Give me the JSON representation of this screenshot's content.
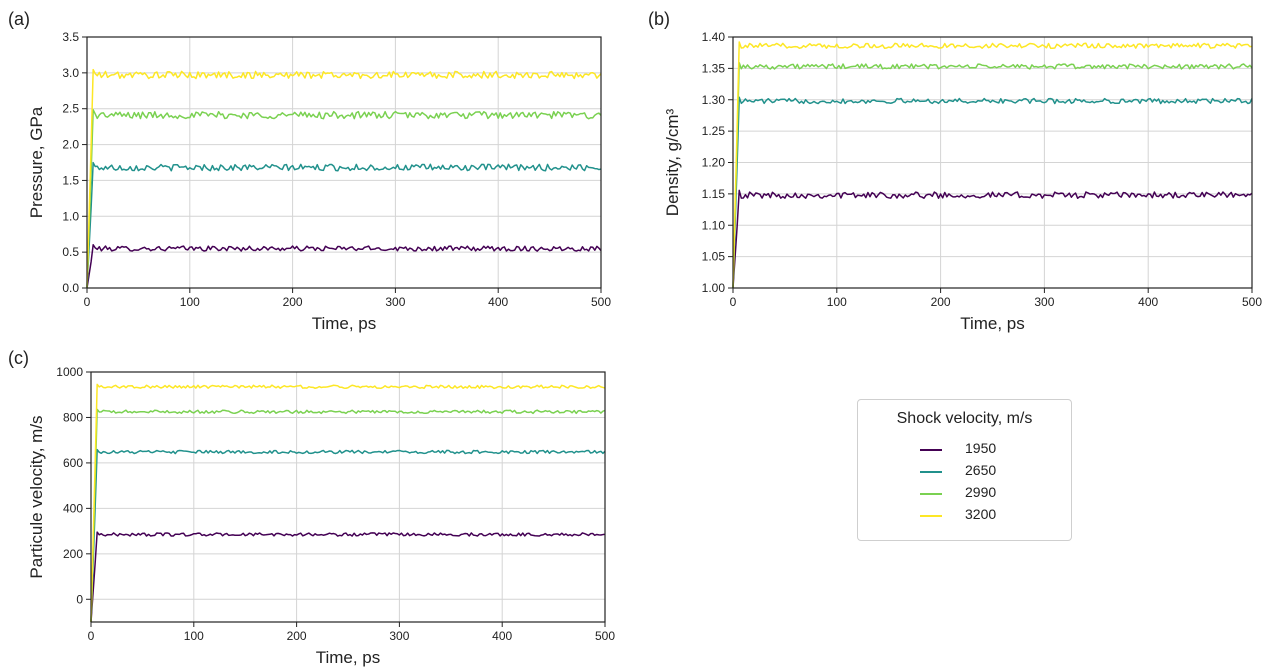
{
  "chart_data": [
    {
      "id": "a",
      "type": "line",
      "panel_label": "(a)",
      "xlabel": "Time, ps",
      "ylabel": "Pressure, GPa",
      "xlim": [
        0,
        500
      ],
      "ylim": [
        0,
        3.5
      ],
      "xticks": [
        0,
        100,
        200,
        300,
        400,
        500
      ],
      "yticks": [
        0.0,
        0.5,
        1.0,
        1.5,
        2.0,
        2.5,
        3.0,
        3.5
      ],
      "ytick_labels": [
        "0.0",
        "0.5",
        "1.0",
        "1.5",
        "2.0",
        "2.5",
        "3.0",
        "3.5"
      ],
      "grid": true,
      "series": [
        {
          "name": "1950",
          "plateau": 0.55,
          "noise": 0.035,
          "start": 0.0
        },
        {
          "name": "2650",
          "plateau": 1.68,
          "noise": 0.045,
          "start": 0.0
        },
        {
          "name": "2990",
          "plateau": 2.41,
          "noise": 0.05,
          "start": 0.0
        },
        {
          "name": "3200",
          "plateau": 2.97,
          "noise": 0.05,
          "start": 0.0
        }
      ]
    },
    {
      "id": "b",
      "type": "line",
      "panel_label": "(b)",
      "xlabel": "Time, ps",
      "ylabel": "Density, g/cm³",
      "xlim": [
        0,
        500
      ],
      "ylim": [
        1.0,
        1.4
      ],
      "xticks": [
        0,
        100,
        200,
        300,
        400,
        500
      ],
      "yticks": [
        1.0,
        1.05,
        1.1,
        1.15,
        1.2,
        1.25,
        1.3,
        1.35,
        1.4
      ],
      "ytick_labels": [
        "1.00",
        "1.05",
        "1.10",
        "1.15",
        "1.20",
        "1.25",
        "1.30",
        "1.35",
        "1.40"
      ],
      "grid": true,
      "series": [
        {
          "name": "1950",
          "plateau": 1.148,
          "noise": 0.005,
          "start": 1.0
        },
        {
          "name": "2650",
          "plateau": 1.298,
          "noise": 0.004,
          "start": 1.0
        },
        {
          "name": "2990",
          "plateau": 1.353,
          "noise": 0.004,
          "start": 1.0
        },
        {
          "name": "3200",
          "plateau": 1.386,
          "noise": 0.004,
          "start": 1.0
        }
      ]
    },
    {
      "id": "c",
      "type": "line",
      "panel_label": "(c)",
      "xlabel": "Time, ps",
      "ylabel": "Particule velocity, m/s",
      "xlim": [
        0,
        500
      ],
      "ylim": [
        -100,
        1000
      ],
      "xticks": [
        0,
        100,
        200,
        300,
        400,
        500
      ],
      "yticks": [
        0,
        200,
        400,
        600,
        800,
        1000
      ],
      "ytick_labels": [
        "0",
        "200",
        "400",
        "600",
        "800",
        "1000"
      ],
      "grid": true,
      "series": [
        {
          "name": "1950",
          "plateau": 285,
          "noise": 7,
          "start": -100
        },
        {
          "name": "2650",
          "plateau": 648,
          "noise": 7,
          "start": -100
        },
        {
          "name": "2990",
          "plateau": 825,
          "noise": 7,
          "start": -100
        },
        {
          "name": "3200",
          "plateau": 935,
          "noise": 7,
          "start": -100
        }
      ]
    }
  ],
  "legend": {
    "title": "Shock velocity, m/s",
    "items": [
      {
        "label": "1950",
        "color": "#440154"
      },
      {
        "label": "2650",
        "color": "#21918c"
      },
      {
        "label": "2990",
        "color": "#7ad151"
      },
      {
        "label": "3200",
        "color": "#fde725"
      }
    ]
  },
  "colors": {
    "series": [
      "#440154",
      "#21918c",
      "#7ad151",
      "#fde725"
    ],
    "grid": "#d4d4d4",
    "axes": "#222222"
  }
}
